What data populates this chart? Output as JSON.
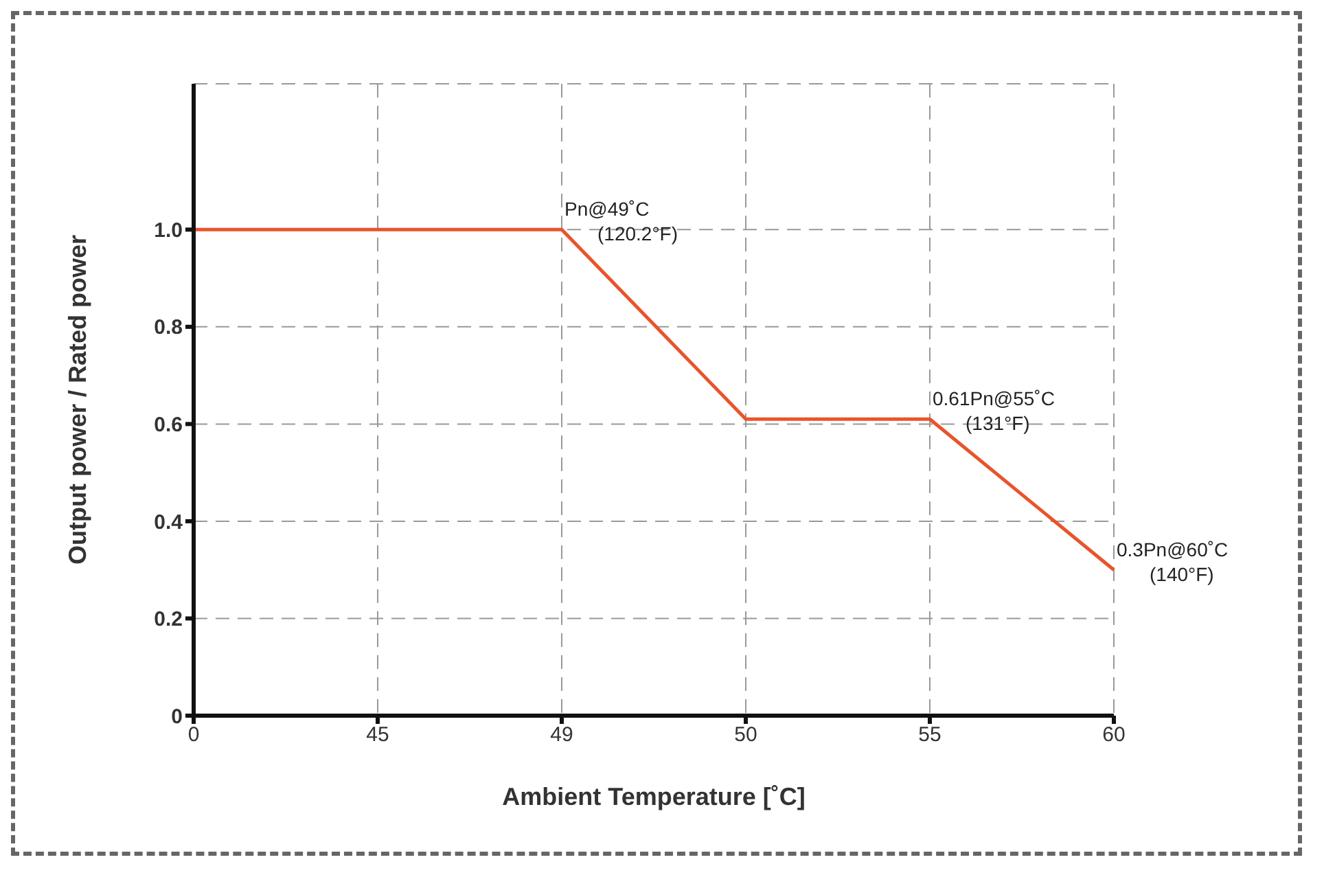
{
  "chart_data": {
    "type": "line",
    "xlabel": "Ambient Temperature [˚C]",
    "ylabel": "Output power / Rated power",
    "categories": [
      "0",
      "45",
      "49",
      "50",
      "55",
      "60"
    ],
    "series": [
      {
        "color": "#e8542c",
        "values": [
          1,
          1,
          1,
          0.61,
          0.61,
          0.3
        ]
      }
    ],
    "ylim": [
      0,
      1.3
    ],
    "yticks": [
      0,
      0.2,
      0.4,
      0.6,
      0.8,
      {
        "value": 1,
        "label": "1.0"
      }
    ],
    "grid": true,
    "marker": "none",
    "line_style": "solid",
    "legend": false,
    "annotations": [
      {
        "text": "Pn@49˚C\n(120.2°F)",
        "x": "49",
        "y": 1
      },
      {
        "text": "0.61Pn@55˚C\n(131°F)",
        "x": "55",
        "y": 0.61
      },
      {
        "text": "0.3Pn@60˚C\n(140°F)",
        "x": "60",
        "y": 0.3
      }
    ]
  }
}
